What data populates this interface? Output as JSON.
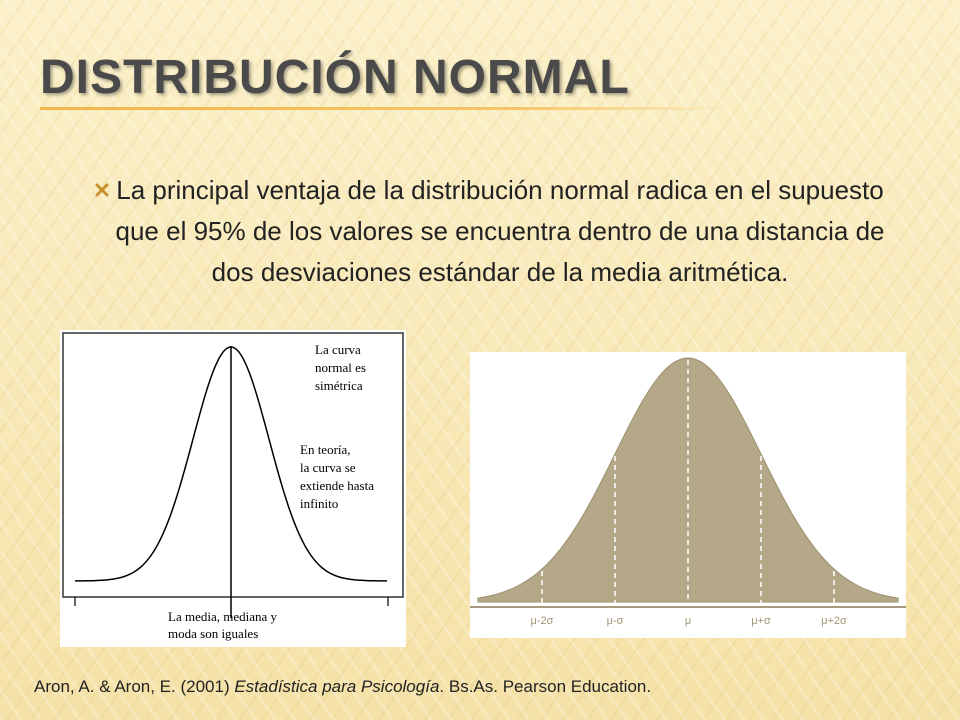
{
  "slide": {
    "title": "DISTRIBUCIÓN NORMAL",
    "bullet_text": "La principal ventaja de la distribución normal radica en el supuesto que el 95% de los valores se encuentra dentro de una distancia de dos desviaciones estándar de la media aritmética.",
    "bullet_icon": "x-mark-icon"
  },
  "left_figure": {
    "label_symmetric": [
      "La curva",
      "normal es",
      "simétrica"
    ],
    "label_infinite": [
      "En teoría,",
      "la curva se",
      "extiende hasta",
      "infinito"
    ],
    "label_mean": [
      "La media, mediana y",
      "moda son iguales"
    ]
  },
  "right_figure": {
    "tick_labels": [
      "μ-2σ",
      "μ-σ",
      "μ",
      "μ+σ",
      "μ+2σ"
    ],
    "fill_color": "#b5a888"
  },
  "citation": {
    "authors": "Aron, A. & Aron, E. (2001) ",
    "book": "Estadística para Psicología",
    "publisher": ". Bs.As. Pearson Education."
  }
}
